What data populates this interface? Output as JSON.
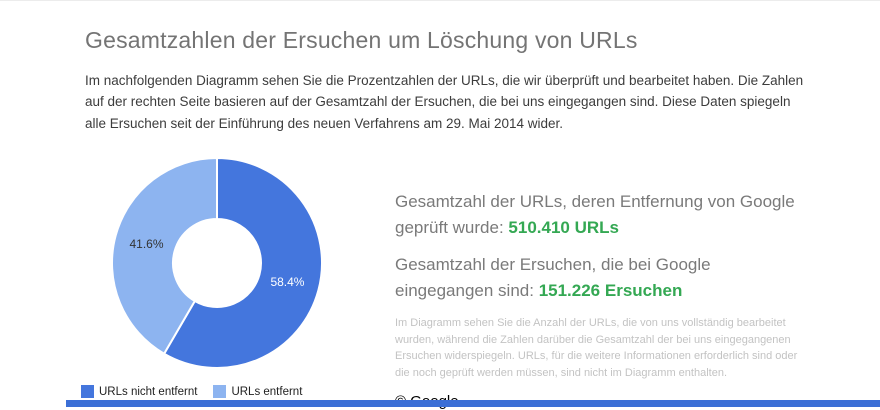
{
  "page": {
    "title": "Gesamtzahlen der Ersuchen um Löschung von URLs",
    "intro": "Im nachfolgenden Diagramm sehen Sie die Prozentzahlen der URLs, die wir überprüft und bearbeitet haben. Die Zahlen auf der rechten Seite basieren auf der Gesamtzahl der Ersuchen, die bei uns eingegangen sind. Diese Daten spiegeln alle Ersuchen seit der Einführung des neuen Verfahrens am 29. Mai 2014 wider."
  },
  "chart_data": {
    "type": "pie",
    "donut": true,
    "categories": [
      "URLs nicht entfernt",
      "URLs entfernt"
    ],
    "values": [
      58.4,
      41.6
    ],
    "data_labels": [
      "58.4%",
      "41.6%"
    ],
    "colors": [
      "#4476dd",
      "#8db4f0"
    ],
    "label_colors": [
      "#ffffff",
      "#333333"
    ],
    "legend_position": "bottom",
    "title": ""
  },
  "stats": {
    "line1_prefix": "Gesamtzahl der URLs, deren Entfernung von Google geprüft wurde: ",
    "line1_value": "510.410 URLs",
    "line2_prefix": "Gesamtzahl der Ersuchen, die bei Google eingegangen sind: ",
    "line2_value": "151.226 Ersuchen",
    "value_color": "#34a853",
    "footnote": "Im Diagramm sehen Sie die Anzahl der URLs, die von uns vollständig bearbeitet wurden, während die Zahlen darüber die Gesamtzahl der bei uns eingegangenen Ersuchen widerspiegeln. URLs, für die weitere Informationen erforderlich sind oder die noch geprüft werden müssen, sind nicht im Diagramm enthalten.",
    "copyright": "© Google"
  },
  "footer": {
    "bar_color": "#3b6fd6"
  }
}
